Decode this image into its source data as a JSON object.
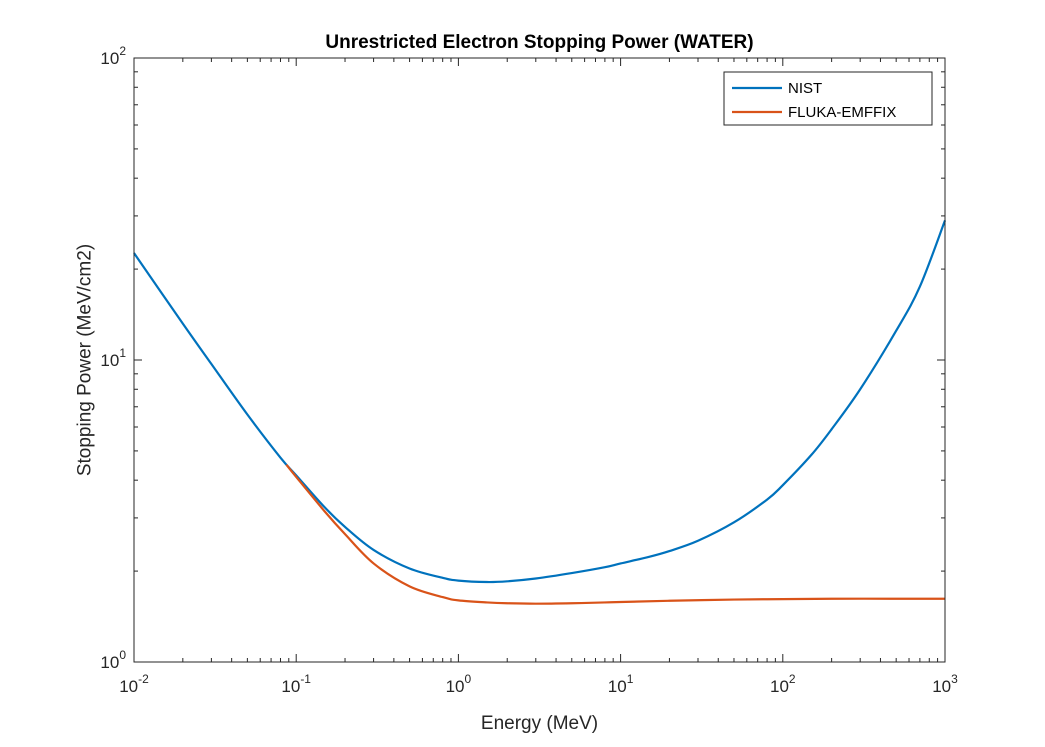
{
  "chart_data": {
    "type": "line",
    "title": "Unrestricted Electron Stopping Power (WATER)",
    "xlabel": "Energy (MeV)",
    "ylabel": "Stopping Power (MeV/cm2)",
    "xscale": "log",
    "yscale": "log",
    "xlim": [
      0.01,
      1000
    ],
    "ylim": [
      1,
      100
    ],
    "x_ticks": [
      {
        "base": "10",
        "exp": "-2"
      },
      {
        "base": "10",
        "exp": "-1"
      },
      {
        "base": "10",
        "exp": "0"
      },
      {
        "base": "10",
        "exp": "1"
      },
      {
        "base": "10",
        "exp": "2"
      },
      {
        "base": "10",
        "exp": "3"
      }
    ],
    "y_ticks": [
      {
        "base": "10",
        "exp": "0"
      },
      {
        "base": "10",
        "exp": "1"
      },
      {
        "base": "10",
        "exp": "2"
      }
    ],
    "legend_position": "top-right",
    "grid": false,
    "series": [
      {
        "name": "NIST",
        "color": "#0072BD",
        "x": [
          0.01,
          0.02,
          0.03,
          0.05,
          0.08,
          0.1,
          0.15,
          0.2,
          0.3,
          0.5,
          0.8,
          1.0,
          1.5,
          2,
          3,
          5,
          8,
          10,
          15,
          20,
          30,
          50,
          80,
          100,
          150,
          200,
          300,
          500,
          700,
          1000
        ],
        "y": [
          22.6,
          13.2,
          9.7,
          6.6,
          4.75,
          4.15,
          3.25,
          2.8,
          2.35,
          2.04,
          1.9,
          1.86,
          1.84,
          1.85,
          1.89,
          1.97,
          2.06,
          2.12,
          2.23,
          2.33,
          2.52,
          2.9,
          3.45,
          3.85,
          4.85,
          5.9,
          8.0,
          12.5,
          17.5,
          29.0
        ]
      },
      {
        "name": "FLUKA-EMFFIX",
        "color": "#D95319",
        "x": [
          0.087,
          0.1,
          0.15,
          0.2,
          0.3,
          0.5,
          0.8,
          1.0,
          1.5,
          2,
          3,
          5,
          8,
          10,
          20,
          50,
          100,
          200,
          500,
          1000
        ],
        "y": [
          4.5,
          4.1,
          3.15,
          2.65,
          2.12,
          1.78,
          1.64,
          1.6,
          1.575,
          1.565,
          1.56,
          1.565,
          1.575,
          1.58,
          1.595,
          1.61,
          1.615,
          1.62,
          1.62,
          1.62
        ]
      }
    ]
  }
}
